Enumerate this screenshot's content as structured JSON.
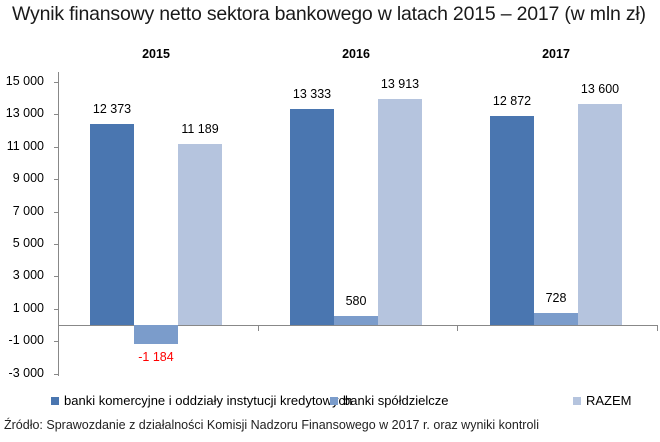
{
  "title": "Wynik finansowy netto sektora bankowego w latach 2015 – 2017 (w mln zł)",
  "source": "Źródło: Sprawozdanie z działalności Komisji Nadzoru Finansowego w 2017 r. oraz wyniki kontroli",
  "colors": {
    "komercyjne": "#4a76b0",
    "spoldzielcze": "#7b9ccb",
    "razem": "#b5c4de",
    "negative_label": "#ff0000"
  },
  "groups": [
    {
      "year": "2015",
      "labels": [
        "12 373",
        "-1 184",
        "11 189"
      ]
    },
    {
      "year": "2016",
      "labels": [
        "13 333",
        "580",
        "13 913"
      ]
    },
    {
      "year": "2017",
      "labels": [
        "12 872",
        "728",
        "13 600"
      ]
    }
  ],
  "y_ticks": [
    "15 000",
    "13 000",
    "11 000",
    "9 000",
    "7 000",
    "5 000",
    "3 000",
    "1 000",
    "-1 000",
    "-3 000"
  ],
  "legend": [
    {
      "label": "banki komercyjne i oddziały instytucji kredytowych"
    },
    {
      "label": "banki spółdzielcze"
    },
    {
      "label": "RAZEM"
    }
  ],
  "chart_data": {
    "type": "bar",
    "title": "Wynik finansowy netto sektora bankowego w latach 2015 – 2017 (w mln zł)",
    "categories": [
      "2015",
      "2016",
      "2017"
    ],
    "series": [
      {
        "name": "banki komercyjne i oddziały instytucji kredytowych",
        "values": [
          12373,
          13333,
          12872
        ]
      },
      {
        "name": "banki spółdzielcze",
        "values": [
          -1184,
          580,
          728
        ]
      },
      {
        "name": "RAZEM",
        "values": [
          11189,
          13913,
          13600
        ]
      }
    ],
    "xlabel": "",
    "ylabel": "",
    "ylim": [
      -3000,
      15000
    ],
    "y_ticks": [
      15000,
      13000,
      11000,
      9000,
      7000,
      5000,
      3000,
      1000,
      -1000,
      -3000
    ],
    "category_labels_position": "top",
    "grid": false,
    "legend_position": "bottom",
    "source": "Źródło: Sprawozdanie z działalności Komisji Nadzoru Finansowego w 2017 r. oraz wyniki kontroli"
  }
}
